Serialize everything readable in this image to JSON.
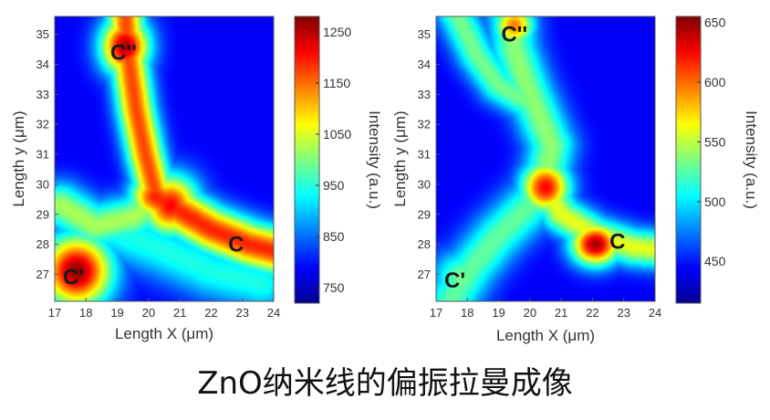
{
  "caption": "ZnO纳米线的偏振拉曼成像",
  "chart_data": [
    {
      "type": "heatmap",
      "xlabel": "Length X (μm)",
      "ylabel": "Length y (μm)",
      "colorbar_label": "Intensity (a.u.)",
      "x_ticks": [
        "17",
        "18",
        "19",
        "20",
        "21",
        "22",
        "23",
        "24"
      ],
      "y_ticks": [
        "27",
        "28",
        "29",
        "30",
        "31",
        "32",
        "33",
        "34",
        "35"
      ],
      "xlim": [
        17,
        24
      ],
      "ylim": [
        26.1,
        35.6
      ],
      "colorbar_ticks": [
        "750",
        "850",
        "950",
        "1050",
        "1150",
        "1250"
      ],
      "colorbar_range": [
        720,
        1280
      ],
      "annotations": [
        {
          "text": "C''",
          "x": 19.2,
          "y": 34.4
        },
        {
          "text": "C'",
          "x": 17.6,
          "y": 26.9
        },
        {
          "text": "C",
          "x": 22.8,
          "y": 28.0
        }
      ],
      "grid": false
    },
    {
      "type": "heatmap",
      "xlabel": "Length X (μm)",
      "ylabel": "Length y (μm)",
      "colorbar_label": "Intensity (a.u.)",
      "x_ticks": [
        "17",
        "18",
        "19",
        "20",
        "21",
        "22",
        "23",
        "24"
      ],
      "y_ticks": [
        "27",
        "28",
        "29",
        "30",
        "31",
        "32",
        "33",
        "34",
        "35"
      ],
      "xlim": [
        17,
        24
      ],
      "ylim": [
        26.1,
        35.6
      ],
      "colorbar_ticks": [
        "450",
        "500",
        "550",
        "600",
        "650"
      ],
      "colorbar_range": [
        415,
        655
      ],
      "annotations": [
        {
          "text": "C''",
          "x": 19.5,
          "y": 35.0
        },
        {
          "text": "C'",
          "x": 17.6,
          "y": 26.8
        },
        {
          "text": "C",
          "x": 22.8,
          "y": 28.1
        }
      ],
      "grid": false
    }
  ]
}
